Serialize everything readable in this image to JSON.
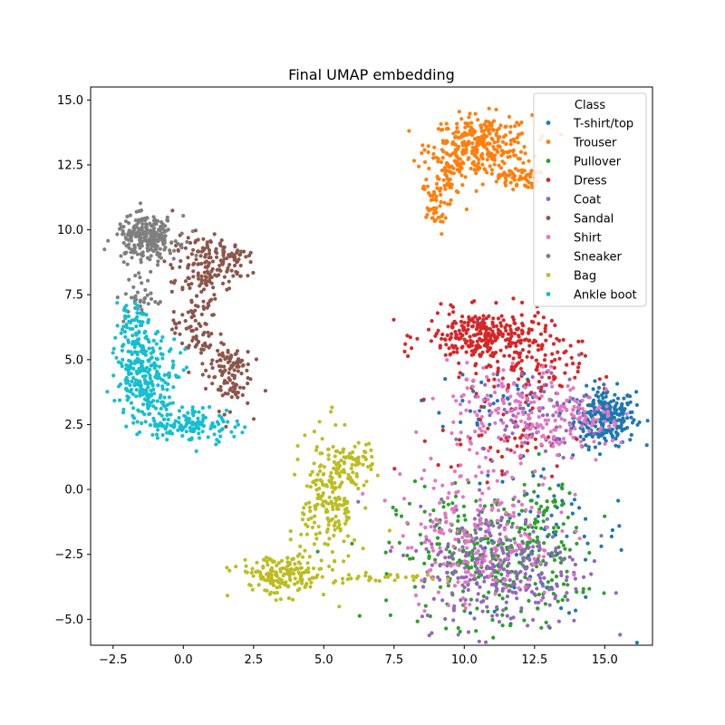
{
  "chart_data": {
    "type": "scatter",
    "title": "Final UMAP embedding",
    "xlabel": "",
    "ylabel": "",
    "xlim": [
      -3.3,
      16.7
    ],
    "ylim": [
      -6.0,
      15.5
    ],
    "xticks": [
      -2.5,
      0.0,
      2.5,
      5.0,
      7.5,
      10.0,
      12.5,
      15.0
    ],
    "xtick_labels": [
      "−2.5",
      "0.0",
      "2.5",
      "5.0",
      "7.5",
      "10.0",
      "12.5",
      "15.0"
    ],
    "yticks": [
      -5.0,
      -2.5,
      0.0,
      2.5,
      5.0,
      7.5,
      10.0,
      12.5,
      15.0
    ],
    "ytick_labels": [
      "−5.0",
      "−2.5",
      "0.0",
      "2.5",
      "5.0",
      "7.5",
      "10.0",
      "12.5",
      "15.0"
    ],
    "grid": false,
    "legend": {
      "title": "Class",
      "placement": "top-right"
    },
    "series": [
      {
        "name": "T-shirt/top",
        "color": "#1f77b4",
        "clusters": [
          {
            "cx": 15.0,
            "cy": 2.8,
            "sx": 0.55,
            "sy": 0.55,
            "n": 260
          },
          {
            "cx": 13.0,
            "cy": -1.8,
            "sx": 1.4,
            "sy": 1.6,
            "n": 70
          },
          {
            "cx": 11.0,
            "cy": 3.5,
            "sx": 1.2,
            "sy": 0.9,
            "n": 40
          }
        ]
      },
      {
        "name": "Trouser",
        "color": "#ff7f0e",
        "clusters": [
          {
            "cx": 10.6,
            "cy": 13.2,
            "sx": 0.9,
            "sy": 0.6,
            "n": 300
          },
          {
            "cx": 9.4,
            "cy": 12.3,
            "sx": 0.35,
            "sy": 0.6,
            "n": 70
          },
          {
            "cx": 8.9,
            "cy": 10.8,
            "sx": 0.25,
            "sy": 0.5,
            "n": 40
          },
          {
            "cx": 11.9,
            "cy": 12.0,
            "sx": 0.35,
            "sy": 0.2,
            "n": 50
          }
        ]
      },
      {
        "name": "Pullover",
        "color": "#2ca02c",
        "clusters": [
          {
            "cx": 10.8,
            "cy": -2.6,
            "sx": 1.6,
            "sy": 1.3,
            "n": 280
          },
          {
            "cx": 12.8,
            "cy": -2.0,
            "sx": 0.6,
            "sy": 1.4,
            "n": 80
          }
        ]
      },
      {
        "name": "Dress",
        "color": "#d62728",
        "clusters": [
          {
            "cx": 10.8,
            "cy": 5.9,
            "sx": 1.1,
            "sy": 0.5,
            "n": 300
          },
          {
            "cx": 12.2,
            "cy": 4.5,
            "sx": 1.0,
            "sy": 0.6,
            "n": 90
          },
          {
            "cx": 11.5,
            "cy": 2.0,
            "sx": 1.2,
            "sy": 0.8,
            "n": 60
          }
        ]
      },
      {
        "name": "Coat",
        "color": "#9467bd",
        "clusters": [
          {
            "cx": 11.3,
            "cy": -3.0,
            "sx": 1.5,
            "sy": 1.2,
            "n": 300
          },
          {
            "cx": 12.5,
            "cy": 3.0,
            "sx": 1.0,
            "sy": 0.8,
            "n": 80
          }
        ]
      },
      {
        "name": "Sandal",
        "color": "#8c564b",
        "clusters": [
          {
            "cx": 0.8,
            "cy": 8.6,
            "sx": 0.6,
            "sy": 0.6,
            "n": 140
          },
          {
            "cx": 1.6,
            "cy": 4.5,
            "sx": 0.4,
            "sy": 0.7,
            "n": 110
          },
          {
            "cx": 0.4,
            "cy": 6.3,
            "sx": 0.4,
            "sy": 0.8,
            "n": 80
          },
          {
            "cx": 1.8,
            "cy": 9.1,
            "sx": 0.25,
            "sy": 0.2,
            "n": 30
          }
        ]
      },
      {
        "name": "Shirt",
        "color": "#e377c2",
        "clusters": [
          {
            "cx": 10.5,
            "cy": -1.5,
            "sx": 1.4,
            "sy": 1.5,
            "n": 220
          },
          {
            "cx": 12.0,
            "cy": 3.0,
            "sx": 1.3,
            "sy": 0.9,
            "n": 160
          },
          {
            "cx": 14.4,
            "cy": 2.5,
            "sx": 0.8,
            "sy": 0.5,
            "n": 60
          }
        ]
      },
      {
        "name": "Sneaker",
        "color": "#7f7f7f",
        "clusters": [
          {
            "cx": -1.3,
            "cy": 9.7,
            "sx": 0.55,
            "sy": 0.4,
            "n": 250
          },
          {
            "cx": -1.5,
            "cy": 7.5,
            "sx": 0.3,
            "sy": 0.6,
            "n": 40
          }
        ]
      },
      {
        "name": "Bag",
        "color": "#bcbd22",
        "clusters": [
          {
            "cx": 3.5,
            "cy": -3.3,
            "sx": 0.8,
            "sy": 0.4,
            "n": 170
          },
          {
            "cx": 5.2,
            "cy": -0.4,
            "sx": 0.5,
            "sy": 1.3,
            "n": 190
          },
          {
            "cx": 6.0,
            "cy": 1.0,
            "sx": 0.4,
            "sy": 0.4,
            "n": 60
          },
          {
            "cx": 7.0,
            "cy": -3.4,
            "sx": 1.0,
            "sy": 0.08,
            "n": 30
          }
        ]
      },
      {
        "name": "Ankle boot",
        "color": "#17becf",
        "clusters": [
          {
            "cx": -1.3,
            "cy": 4.3,
            "sx": 0.55,
            "sy": 0.8,
            "n": 260
          },
          {
            "cx": 0.3,
            "cy": 2.5,
            "sx": 0.8,
            "sy": 0.35,
            "n": 130
          },
          {
            "cx": -1.8,
            "cy": 6.4,
            "sx": 0.3,
            "sy": 0.5,
            "n": 60
          }
        ]
      }
    ]
  }
}
